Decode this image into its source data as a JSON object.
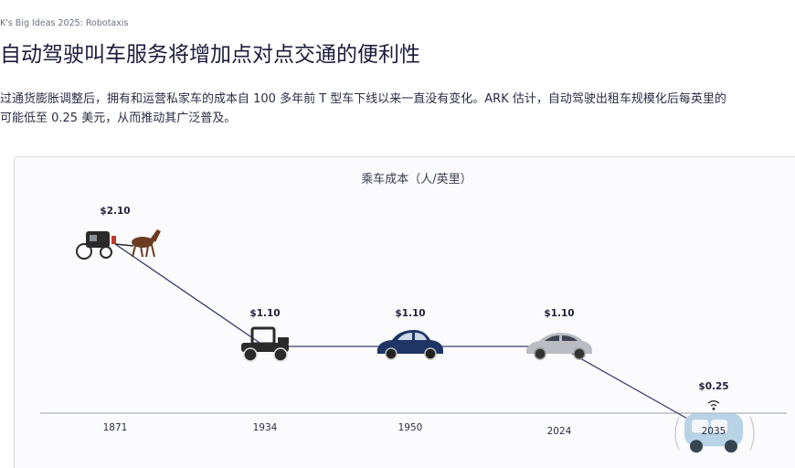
{
  "header": {
    "eyebrow": "K's Big Ideas 2025: Robotaxis",
    "headline": "自动驾驶叫车服务将增加点对点交通的便利性",
    "body_line1": "过通货膨胀调整后，拥有和运营私家车的成本自 100 多年前 T 型车下线以来一直没有变化。ARK 估计，自动驾驶出租车规模化后每英里的",
    "body_line2": "可能低至 0.25 美元，从而推动其广泛普及。"
  },
  "chart_data": {
    "type": "line",
    "title": "乘车成本（人/英里）",
    "categories": [
      "1871",
      "1934",
      "1950",
      "2024",
      "2035"
    ],
    "values": [
      2.1,
      1.1,
      1.1,
      1.1,
      0.25
    ],
    "value_labels": [
      "$2.10",
      "$1.10",
      "$1.10",
      "$1.10",
      "$0.25"
    ],
    "icons": [
      "horse-carriage-icon",
      "model-t-car-icon",
      "classic-sedan-icon",
      "modern-sedan-icon",
      "robotaxi-icon"
    ],
    "line_color": "#3a3f6b",
    "grid": false,
    "legend": "none"
  }
}
